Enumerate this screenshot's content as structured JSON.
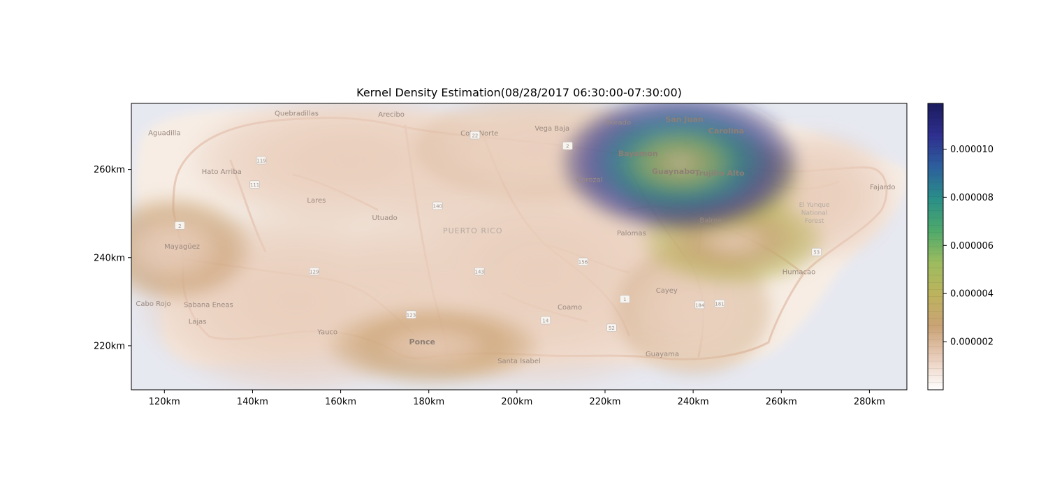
{
  "chart_data": {
    "type": "heatmap",
    "title": "Kernel Density Estimation(08/28/2017 06:30:00-07:30:00)",
    "x_ticks": [
      "120km",
      "140km",
      "160km",
      "180km",
      "200km",
      "220km",
      "240km",
      "260km",
      "280km"
    ],
    "y_ticks": [
      "220km",
      "240km",
      "260km"
    ],
    "xlim": [
      112.5,
      288.5
    ],
    "ylim": [
      210,
      275
    ],
    "colorbar": {
      "ticks": [
        "0.000002",
        "0.000004",
        "0.000006",
        "0.000008",
        "0.000010"
      ],
      "tick_values": [
        2e-06,
        4e-06,
        6e-06,
        8e-06,
        1e-05
      ],
      "range": [
        0,
        1.19e-05
      ],
      "colors": [
        "#ffffff",
        "#e9cdbb",
        "#c9a375",
        "#bdb35e",
        "#9cbc5f",
        "#4ea96b",
        "#2a8f88",
        "#2d5f9e",
        "#2e2f8f",
        "#1b1b5e"
      ]
    },
    "hotspots": [
      {
        "x": 237,
        "y": 261.5,
        "peak": 1.15e-05,
        "sx": 9,
        "sy": 5.2
      },
      {
        "x": 244,
        "y": 257,
        "peak": 4e-06,
        "sx": 7,
        "sy": 4
      },
      {
        "x": 249,
        "y": 244,
        "peak": 3.6e-06,
        "sx": 7,
        "sy": 3.5
      },
      {
        "x": 181,
        "y": 220,
        "peak": 2.6e-06,
        "sx": 8,
        "sy": 3
      },
      {
        "x": 122,
        "y": 242,
        "peak": 2.2e-06,
        "sx": 6,
        "sy": 4
      },
      {
        "x": 240,
        "y": 228,
        "peak": 1.6e-06,
        "sx": 6,
        "sy": 5
      },
      {
        "x": 204,
        "y": 265,
        "peak": 1.4e-06,
        "sx": 9,
        "sy": 4
      },
      {
        "x": 162,
        "y": 262,
        "peak": 1.2e-06,
        "sx": 12,
        "sy": 5
      },
      {
        "x": 268,
        "y": 254,
        "peak": 1.3e-06,
        "sx": 6,
        "sy": 5
      },
      {
        "x": 205,
        "y": 237,
        "peak": 1.1e-06,
        "sx": 14,
        "sy": 9
      },
      {
        "x": 150,
        "y": 230,
        "peak": 1e-06,
        "sx": 12,
        "sy": 7
      }
    ]
  },
  "map": {
    "region_label": "PUERTO RICO",
    "forest_label": [
      "El Yunque",
      "National",
      "Forest"
    ],
    "places": [
      {
        "name": "Quebradillas",
        "x": 150,
        "y": 272.2
      },
      {
        "name": "Arecibo",
        "x": 171.5,
        "y": 272
      },
      {
        "name": "Aguadilla",
        "x": 120,
        "y": 267.8
      },
      {
        "name": "Vega Baja",
        "x": 208,
        "y": 268.8
      },
      {
        "name": "Dorado",
        "x": 223,
        "y": 270.2
      },
      {
        "name": "Coto Norte",
        "x": 191.5,
        "y": 267.7
      },
      {
        "name": "San Juan",
        "x": 238,
        "y": 270.8,
        "major": true
      },
      {
        "name": "Carolina",
        "x": 247.5,
        "y": 268.2,
        "major": true
      },
      {
        "name": "Bayamon",
        "x": 227.5,
        "y": 263,
        "major": true
      },
      {
        "name": "Guaynabo",
        "x": 235.5,
        "y": 259,
        "major": true
      },
      {
        "name": "Trujillo Alto",
        "x": 246,
        "y": 258.6,
        "major": true
      },
      {
        "name": "Corozal",
        "x": 216.5,
        "y": 257.2
      },
      {
        "name": "Hato Arriba",
        "x": 133,
        "y": 259
      },
      {
        "name": "Lares",
        "x": 154.5,
        "y": 252.5
      },
      {
        "name": "Utuado",
        "x": 170,
        "y": 248.5
      },
      {
        "name": "Bairoa",
        "x": 244,
        "y": 248
      },
      {
        "name": "Palomas",
        "x": 226,
        "y": 245
      },
      {
        "name": "Mayagüez",
        "x": 124,
        "y": 242
      },
      {
        "name": "Fajardo",
        "x": 283,
        "y": 255.5
      },
      {
        "name": "Humacao",
        "x": 264,
        "y": 236.2
      },
      {
        "name": "Cayey",
        "x": 234,
        "y": 232
      },
      {
        "name": "Coamo",
        "x": 212,
        "y": 228.2
      },
      {
        "name": "Cabo Rojo",
        "x": 117.5,
        "y": 229
      },
      {
        "name": "Sabana Eneas",
        "x": 130,
        "y": 228.8
      },
      {
        "name": "Lajas",
        "x": 127.5,
        "y": 225
      },
      {
        "name": "Yauco",
        "x": 157,
        "y": 222.6
      },
      {
        "name": "Ponce",
        "x": 178.5,
        "y": 220.3,
        "major": true
      },
      {
        "name": "Santa Isabel",
        "x": 200.5,
        "y": 216
      },
      {
        "name": "Guayama",
        "x": 233,
        "y": 217.6
      }
    ],
    "shields": [
      {
        "label": "22",
        "x": 190.5,
        "y": 267.7
      },
      {
        "label": "2",
        "x": 211.5,
        "y": 265.3
      },
      {
        "label": "119",
        "x": 142,
        "y": 262
      },
      {
        "label": "111",
        "x": 140.5,
        "y": 256.5
      },
      {
        "label": "2",
        "x": 123.5,
        "y": 247.2
      },
      {
        "label": "140",
        "x": 182,
        "y": 251.7
      },
      {
        "label": "129",
        "x": 154,
        "y": 236.8
      },
      {
        "label": "143",
        "x": 191.5,
        "y": 236.8
      },
      {
        "label": "156",
        "x": 215,
        "y": 239
      },
      {
        "label": "1",
        "x": 224.5,
        "y": 230.5
      },
      {
        "label": "184",
        "x": 241.5,
        "y": 229.2
      },
      {
        "label": "181",
        "x": 246,
        "y": 229.5
      },
      {
        "label": "123",
        "x": 176,
        "y": 227
      },
      {
        "label": "14",
        "x": 206.5,
        "y": 225.7
      },
      {
        "label": "52",
        "x": 221.5,
        "y": 224
      },
      {
        "label": "53",
        "x": 268,
        "y": 241.2
      }
    ]
  }
}
